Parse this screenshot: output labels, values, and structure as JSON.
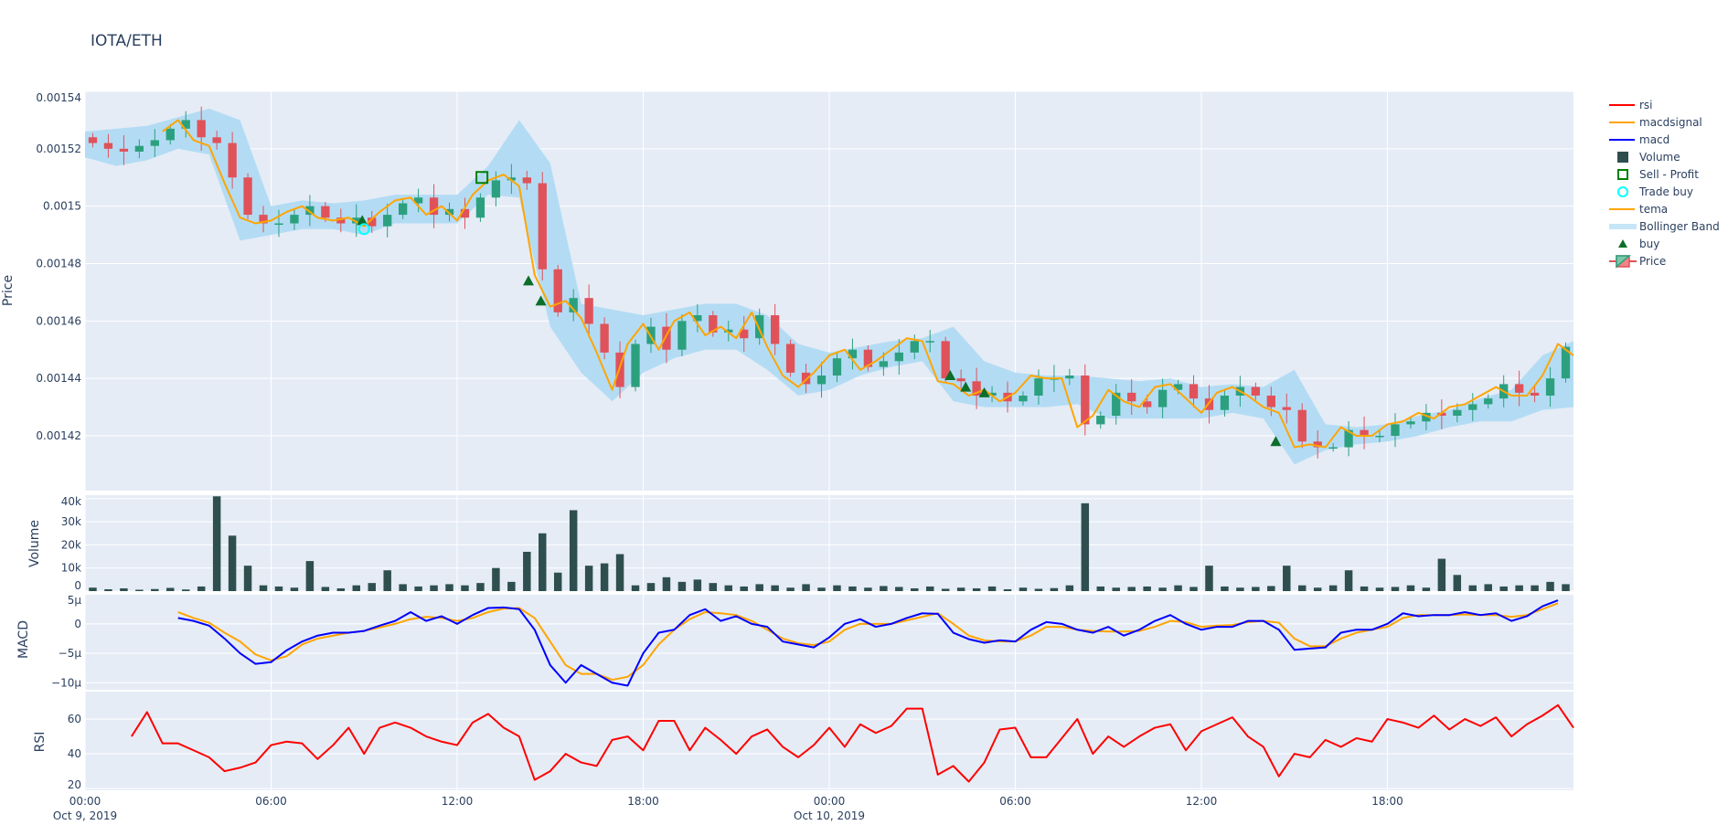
{
  "title": "IOTA/ETH",
  "chart_data": {
    "type": "candlestick",
    "title": "IOTA/ETH",
    "x_unit": "hours since Oct 9, 2019 00:00",
    "x_ticks": [
      {
        "h": 0,
        "label": "00:00",
        "date": "Oct 9, 2019"
      },
      {
        "h": 6,
        "label": "06:00"
      },
      {
        "h": 12,
        "label": "12:00"
      },
      {
        "h": 18,
        "label": "18:00"
      },
      {
        "h": 24,
        "label": "00:00",
        "date": "Oct 10, 2019"
      },
      {
        "h": 30,
        "label": "06:00"
      },
      {
        "h": 36,
        "label": "12:00"
      },
      {
        "h": 42,
        "label": "18:00"
      }
    ],
    "xlim": [
      0,
      48
    ],
    "grid": true,
    "legend_placement": "right",
    "colors": {
      "increasing": "#2ca07e",
      "decreasing": "#e0525a",
      "bollinger": "#b3dcf4",
      "tema": "#ffa500",
      "macd": "#0000ff",
      "macdsignal": "#ffa500",
      "rsi": "#ff0000",
      "volume": "#2f4f4f",
      "buy": "#0b6e2a",
      "trade_buy": "#00ffff",
      "sell_profit": "#008000",
      "plot_bg": "#e5ecf6"
    },
    "panels": {
      "price": {
        "ylabel": "Price",
        "ylim": [
          0.0014009,
          0.00154
        ],
        "ticks": [
          "0.00154",
          "0.00152",
          "0.0015",
          "0.00148",
          "0.00146",
          "0.00144",
          "0.00142"
        ],
        "tick_values": [
          0.00154,
          0.00152,
          0.0015,
          0.00148,
          0.00146,
          0.00144,
          0.00142
        ]
      },
      "volume": {
        "ylabel": "Volume",
        "ylim": [
          0,
          41500
        ],
        "ticks": [
          "0",
          "10k",
          "20k",
          "30k",
          "40k"
        ],
        "tick_values": [
          0,
          10000,
          20000,
          30000,
          40000
        ]
      },
      "macd": {
        "ylabel": "MACD",
        "ylim": [
          -11.2,
          5.1
        ],
        "unit": "µ",
        "ticks": [
          "5µ",
          "0",
          "−5µ",
          "−10µ"
        ],
        "tick_values": [
          5,
          0,
          -5,
          -10
        ]
      },
      "rsi": {
        "ylabel": "RSI",
        "ylim": [
          19,
          75.8
        ],
        "ticks": [
          "20",
          "40",
          "60"
        ],
        "tick_values": [
          20,
          40,
          60
        ]
      }
    },
    "candles": {
      "start_h": 0,
      "step_h": 0.5,
      "close": [
        0.001522,
        0.00152,
        0.001519,
        0.001521,
        0.001523,
        0.001527,
        0.00153,
        0.001524,
        0.001522,
        0.00151,
        0.001497,
        0.001494,
        0.001494,
        0.001497,
        0.0015,
        0.001496,
        0.001494,
        0.001496,
        0.001493,
        0.001497,
        0.001501,
        0.001503,
        0.001497,
        0.001499,
        0.001496,
        0.001503,
        0.001509,
        0.00151,
        0.001508,
        0.001478,
        0.001463,
        0.001468,
        0.001459,
        0.001449,
        0.001437,
        0.001452,
        0.001458,
        0.00145,
        0.00146,
        0.001462,
        0.001456,
        0.001457,
        0.001454,
        0.001462,
        0.001452,
        0.001442,
        0.001438,
        0.001441,
        0.001447,
        0.00145,
        0.001444,
        0.001446,
        0.001449,
        0.001453,
        0.001453,
        0.00144,
        0.001439,
        0.001434,
        0.001435,
        0.001432,
        0.001434,
        0.00144,
        0.00144,
        0.001441,
        0.001424,
        0.001427,
        0.001435,
        0.001432,
        0.00143,
        0.001436,
        0.001438,
        0.001433,
        0.001429,
        0.001434,
        0.001437,
        0.001434,
        0.00143,
        0.001429,
        0.001418,
        0.001416,
        0.001416,
        0.001422,
        0.00142,
        0.00142,
        0.001424,
        0.001425,
        0.001428,
        0.001427,
        0.001429,
        0.001431,
        0.001433,
        0.001438,
        0.001435,
        0.001434,
        0.00144,
        0.001451
      ]
    },
    "tema": {
      "start_h": 2.5,
      "step_h": 0.5,
      "values": [
        0.001526,
        0.00153,
        0.001523,
        0.001521,
        0.001508,
        0.001496,
        0.001494,
        0.001495,
        0.001498,
        0.0015,
        0.001496,
        0.001495,
        0.001496,
        0.001493,
        0.001498,
        0.001502,
        0.001503,
        0.001497,
        0.0015,
        0.001495,
        0.001504,
        0.001509,
        0.001511,
        0.001507,
        0.001476,
        0.001465,
        0.001467,
        0.001461,
        0.001449,
        0.001436,
        0.001452,
        0.001459,
        0.00145,
        0.00146,
        0.001463,
        0.001455,
        0.001458,
        0.001454,
        0.001463,
        0.001451,
        0.001441,
        0.001437,
        0.001442,
        0.001448,
        0.00145,
        0.001443,
        0.001446,
        0.00145,
        0.001454,
        0.001453,
        0.001439,
        0.001438,
        0.001434,
        0.001436,
        0.001432,
        0.001435,
        0.001441,
        0.00144,
        0.00144,
        0.001423,
        0.001427,
        0.001436,
        0.001432,
        0.00143,
        0.001437,
        0.001438,
        0.001433,
        0.001428,
        0.001435,
        0.001437,
        0.001434,
        0.00143,
        0.001428,
        0.001416,
        0.001417,
        0.001416,
        0.001423,
        0.00142,
        0.00142,
        0.001424,
        0.001425,
        0.001428,
        0.001426,
        0.00143,
        0.001431,
        0.001434,
        0.001437,
        0.001434,
        0.001434,
        0.001441,
        0.001452,
        0.001448
      ]
    },
    "bollinger": {
      "name": "Bollinger Band",
      "start_h": 0,
      "step_h": 1,
      "upper": [
        0.001526,
        0.001527,
        0.001528,
        0.001531,
        0.001534,
        0.00153,
        0.0015,
        0.001502,
        0.001501,
        0.001502,
        0.001504,
        0.001504,
        0.001504,
        0.001514,
        0.00153,
        0.001515,
        0.001466,
        0.001464,
        0.001462,
        0.001464,
        0.001466,
        0.001466,
        0.001462,
        0.001452,
        0.001449,
        0.001451,
        0.001453,
        0.001454,
        0.001458,
        0.001446,
        0.001442,
        0.001441,
        0.001441,
        0.00144,
        0.001439,
        0.00144,
        0.001437,
        0.001438,
        0.001437,
        0.001443,
        0.001424,
        0.001423,
        0.001424,
        0.001427,
        0.001429,
        0.001433,
        0.001436,
        0.001448,
        0.001453
      ],
      "lower": [
        0.001517,
        0.001514,
        0.001516,
        0.00152,
        0.001518,
        0.001488,
        0.00149,
        0.001492,
        0.001492,
        0.00149,
        0.001494,
        0.001494,
        0.001494,
        0.001504,
        0.001503,
        0.001458,
        0.001442,
        0.001432,
        0.001442,
        0.001447,
        0.00145,
        0.00145,
        0.001443,
        0.001434,
        0.001436,
        0.001441,
        0.001444,
        0.001446,
        0.001432,
        0.00143,
        0.00143,
        0.00143,
        0.001431,
        0.001426,
        0.001426,
        0.001426,
        0.001426,
        0.001428,
        0.001426,
        0.00141,
        0.001415,
        0.001417,
        0.001418,
        0.00142,
        0.001423,
        0.001425,
        0.001425,
        0.001429,
        0.00143
      ]
    },
    "markers": {
      "buy": [
        {
          "h": 8.94,
          "price": 0.001495
        },
        {
          "h": 14.3,
          "price": 0.001474
        },
        {
          "h": 14.7,
          "price": 0.001467
        },
        {
          "h": 27.9,
          "price": 0.001441
        },
        {
          "h": 28.4,
          "price": 0.001437
        },
        {
          "h": 29.0,
          "price": 0.001435
        },
        {
          "h": 38.4,
          "price": 0.001418
        }
      ],
      "trade_buy": [
        {
          "h": 9.0,
          "price": 0.001492
        }
      ],
      "sell_profit": [
        {
          "h": 12.8,
          "price": 0.00151
        }
      ]
    },
    "volume": {
      "start_h": 0,
      "step_h": 0.5,
      "values": [
        1500,
        800,
        1200,
        600,
        900,
        1400,
        700,
        2000,
        41000,
        24000,
        11000,
        2500,
        2000,
        1500,
        13000,
        1800,
        1200,
        2500,
        3500,
        9000,
        3000,
        2000,
        2500,
        3000,
        2500,
        3500,
        10000,
        4000,
        17000,
        25000,
        8000,
        35000,
        11000,
        12000,
        16000,
        2500,
        3500,
        6000,
        4000,
        5000,
        3500,
        2500,
        2000,
        3000,
        2500,
        1500,
        3000,
        1500,
        2500,
        2000,
        1500,
        2200,
        1800,
        1200,
        2000,
        1000,
        1500,
        1200,
        2000,
        800,
        1500,
        1000,
        1300,
        2500,
        38000,
        2000,
        1500,
        1800,
        2000,
        1500,
        2500,
        1800,
        11000,
        2000,
        1500,
        1800,
        2200,
        11000,
        2500,
        1500,
        2500,
        9000,
        2000,
        1500,
        1800,
        2500,
        1500,
        14000,
        7000,
        2500,
        3000,
        2000,
        2500,
        2500,
        4000,
        3000
      ]
    },
    "macd": {
      "start_h": 3,
      "step_h": 0.5,
      "macd": [
        1.0,
        0.5,
        -0.3,
        -2.5,
        -5,
        -6.8,
        -6.5,
        -4.5,
        -3,
        -2,
        -1.5,
        -1.5,
        -1.2,
        -0.3,
        0.5,
        2,
        0.5,
        1.3,
        0,
        1.5,
        2.7,
        2.8,
        2.5,
        -1,
        -7,
        -10,
        -7,
        -8.5,
        -10,
        -10.5,
        -5,
        -1.5,
        -1,
        1.5,
        2.5,
        0.5,
        1.3,
        0,
        -0.5,
        -3,
        -3.5,
        -4,
        -2.3,
        0,
        0.8,
        -0.5,
        0,
        1,
        1.8,
        1.7,
        -1.5,
        -2.6,
        -3.2,
        -2.8,
        -3,
        -1,
        0.3,
        0,
        -1,
        -1.5,
        -0.5,
        -2,
        -1,
        0.5,
        1.5,
        0,
        -1,
        -0.5,
        -0.5,
        0.5,
        0.5,
        -1,
        -4.4,
        -4.2,
        -4,
        -1.5,
        -1,
        -1,
        0,
        1.8,
        1.3,
        1.5,
        1.5,
        2,
        1.5,
        1.8,
        0.5,
        1.3,
        3,
        4
      ],
      "macdsignal": [
        2,
        1,
        0.2,
        -1.5,
        -3,
        -5.2,
        -6.2,
        -5.5,
        -3.5,
        -2.5,
        -2,
        -1.5,
        -1.2,
        -0.6,
        0,
        0.8,
        1.2,
        1,
        0.5,
        1,
        2,
        2.6,
        2.7,
        1,
        -3,
        -7,
        -8.5,
        -8.5,
        -9.5,
        -9,
        -7,
        -3.5,
        -1,
        0.8,
        2,
        1.8,
        1.5,
        0.5,
        -1,
        -2.5,
        -3.3,
        -3.6,
        -3,
        -1,
        0,
        0,
        0,
        0.6,
        1.2,
        1.8,
        0,
        -2,
        -2.8,
        -3,
        -3,
        -2,
        -0.5,
        -0.5,
        -1,
        -1.2,
        -1.3,
        -1.3,
        -1.2,
        -0.5,
        0.5,
        0.3,
        -0.5,
        -0.3,
        -0.2,
        0.3,
        0.5,
        0.2,
        -2.5,
        -3.8,
        -3.8,
        -2.5,
        -1.5,
        -1,
        -0.5,
        1,
        1.5,
        1.5,
        1.5,
        1.6,
        1.5,
        1.5,
        1.2,
        1.5,
        2.5,
        3.5
      ]
    },
    "rsi": {
      "start_h": 1.5,
      "step_h": 0.5,
      "values": [
        50,
        64,
        46,
        46,
        42,
        38,
        30,
        32,
        35,
        45,
        47,
        46,
        37,
        45,
        55,
        40,
        55,
        58,
        55,
        50,
        47,
        45,
        58,
        63,
        55,
        50,
        25,
        30,
        40,
        35,
        33,
        48,
        50,
        42,
        59,
        59,
        42,
        55,
        48,
        40,
        50,
        54,
        44,
        38,
        45,
        55,
        44,
        57,
        52,
        56,
        66,
        66,
        28,
        33,
        24,
        35,
        54,
        55,
        38,
        38,
        49,
        60,
        40,
        50,
        44,
        50,
        55,
        57,
        42,
        53,
        57,
        61,
        50,
        44,
        27,
        40,
        38,
        48,
        44,
        49,
        47,
        60,
        58,
        55,
        62,
        54,
        60,
        56,
        61,
        50,
        57,
        62,
        68,
        55
      ]
    }
  },
  "legend": {
    "items": [
      {
        "label": "rsi",
        "symbol": "line",
        "color": "#ff0000"
      },
      {
        "label": "macdsignal",
        "symbol": "line",
        "color": "#ffa500"
      },
      {
        "label": "macd",
        "symbol": "line",
        "color": "#0000ff"
      },
      {
        "label": "Volume",
        "symbol": "square-filled",
        "color": "#2f4f4f"
      },
      {
        "label": "Sell - Profit",
        "symbol": "square-open",
        "color": "#008000"
      },
      {
        "label": "Trade buy",
        "symbol": "circle-open",
        "color": "#00ffff"
      },
      {
        "label": "tema",
        "symbol": "line",
        "color": "#ffa500"
      },
      {
        "label": "Bollinger Band",
        "symbol": "band",
        "color": "#c6e6f7"
      },
      {
        "label": "buy",
        "symbol": "triangle",
        "color": "#0b6e2a"
      },
      {
        "label": "Price",
        "symbol": "candle",
        "color": "#2ca07e"
      }
    ]
  }
}
